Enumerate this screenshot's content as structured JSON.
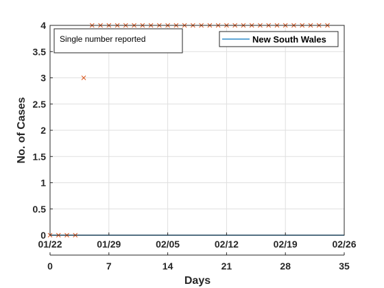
{
  "chart_data": {
    "type": "scatter",
    "annotation": "Single number reported",
    "xlabel": "Days",
    "ylabel": "No. of Cases",
    "xlim": [
      0,
      35
    ],
    "ylim": [
      0,
      4
    ],
    "x_ticks": [
      0,
      7,
      14,
      21,
      28,
      35
    ],
    "date_ticks": [
      "01/22",
      "01/29",
      "02/05",
      "02/12",
      "02/19",
      "02/26"
    ],
    "y_ticks": [
      "0",
      "0.5",
      "1",
      "1.5",
      "2",
      "2.5",
      "3",
      "3.5",
      "4"
    ],
    "grid": true,
    "legend_position": "top-right",
    "series": [
      {
        "name": "New South Wales",
        "kind": "line",
        "color": "#0072BD",
        "x": [
          0,
          35
        ],
        "y": [
          0,
          0
        ]
      },
      {
        "kind": "markers",
        "marker": "x",
        "color": "#D95319",
        "x": [
          0,
          1,
          2,
          3,
          4,
          5,
          6,
          7,
          8,
          9,
          10,
          11,
          12,
          13,
          14,
          15,
          16,
          17,
          18,
          19,
          20,
          21,
          22,
          23,
          24,
          25,
          26,
          27,
          28,
          29,
          30,
          31,
          32,
          33
        ],
        "y": [
          0,
          0,
          0,
          0,
          3,
          4,
          4,
          4,
          4,
          4,
          4,
          4,
          4,
          4,
          4,
          4,
          4,
          4,
          4,
          4,
          4,
          4,
          4,
          4,
          4,
          4,
          4,
          4,
          4,
          4,
          4,
          4,
          4,
          4
        ]
      }
    ]
  }
}
